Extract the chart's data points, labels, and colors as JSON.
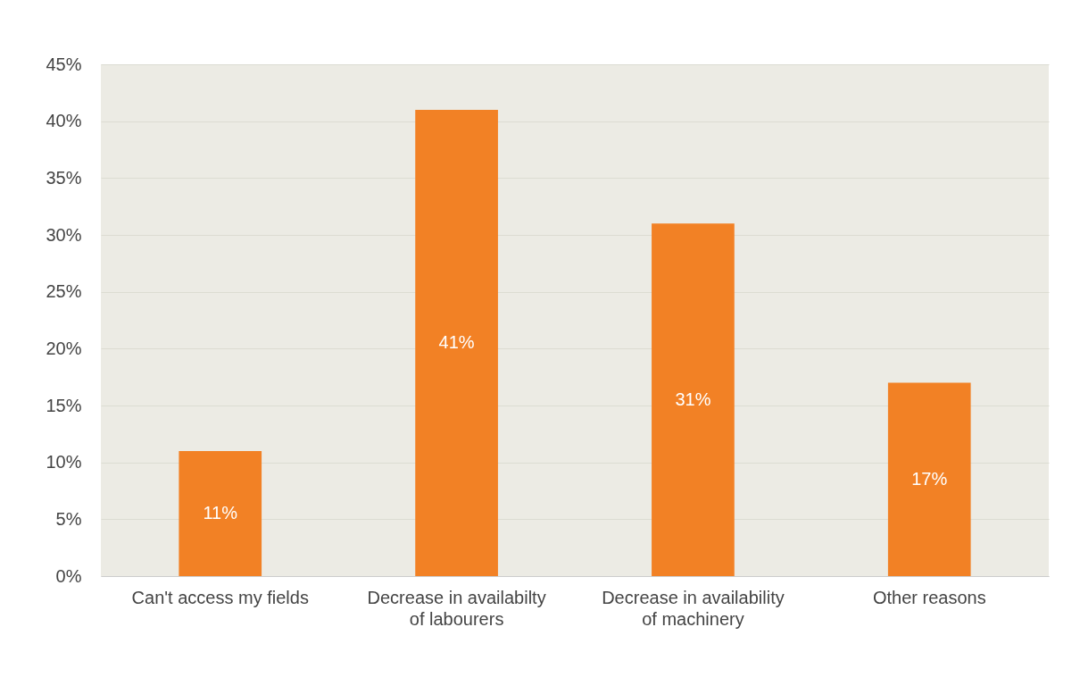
{
  "chart_data": {
    "type": "bar",
    "categories": [
      "Can't access my fields",
      "Decrease in availabilty of labourers",
      "Decrease in availability of machinery",
      "Other reasons"
    ],
    "values": [
      11,
      41,
      31,
      17
    ],
    "color": "#f28125",
    "value_labels": [
      "11%",
      "41%",
      "31%",
      "17%"
    ],
    "ylim": [
      0,
      45
    ],
    "yticks": [
      {
        "value": 0,
        "label": "0%"
      },
      {
        "value": 5,
        "label": "5%"
      },
      {
        "value": 10,
        "label": "10%"
      },
      {
        "value": 15,
        "label": "15%"
      },
      {
        "value": 20,
        "label": "20%"
      },
      {
        "value": 25,
        "label": "25%"
      },
      {
        "value": 30,
        "label": "30%"
      },
      {
        "value": 35,
        "label": "35%"
      },
      {
        "value": 40,
        "label": "40%"
      },
      {
        "value": 45,
        "label": "45%"
      }
    ],
    "grid": "y"
  }
}
